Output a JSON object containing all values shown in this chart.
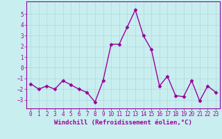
{
  "x": [
    0,
    1,
    2,
    3,
    4,
    5,
    6,
    7,
    8,
    9,
    10,
    11,
    12,
    13,
    14,
    15,
    16,
    17,
    18,
    19,
    20,
    21,
    22,
    23
  ],
  "y": [
    -1.5,
    -2.0,
    -1.7,
    -2.0,
    -1.2,
    -1.6,
    -2.0,
    -2.3,
    -3.2,
    -1.2,
    2.2,
    2.2,
    3.8,
    5.4,
    3.0,
    1.7,
    -1.7,
    -0.8,
    -2.6,
    -2.7,
    -1.2,
    -3.1,
    -1.7,
    -2.3
  ],
  "line_color": "#990099",
  "marker": "D",
  "marker_size": 2.5,
  "line_width": 1.0,
  "bg_color": "#c8eef0",
  "grid_color": "#b0d8da",
  "xlabel": "Windchill (Refroidissement éolien,°C)",
  "xlabel_color": "#990099",
  "tick_color": "#990099",
  "xlim": [
    -0.5,
    23.5
  ],
  "ylim": [
    -3.8,
    6.2
  ],
  "yticks": [
    -3,
    -2,
    -1,
    0,
    1,
    2,
    3,
    4,
    5
  ],
  "xticks": [
    0,
    1,
    2,
    3,
    4,
    5,
    6,
    7,
    8,
    9,
    10,
    11,
    12,
    13,
    14,
    15,
    16,
    17,
    18,
    19,
    20,
    21,
    22,
    23
  ],
  "tick_fontsize": 5.5,
  "label_fontsize": 6.5
}
